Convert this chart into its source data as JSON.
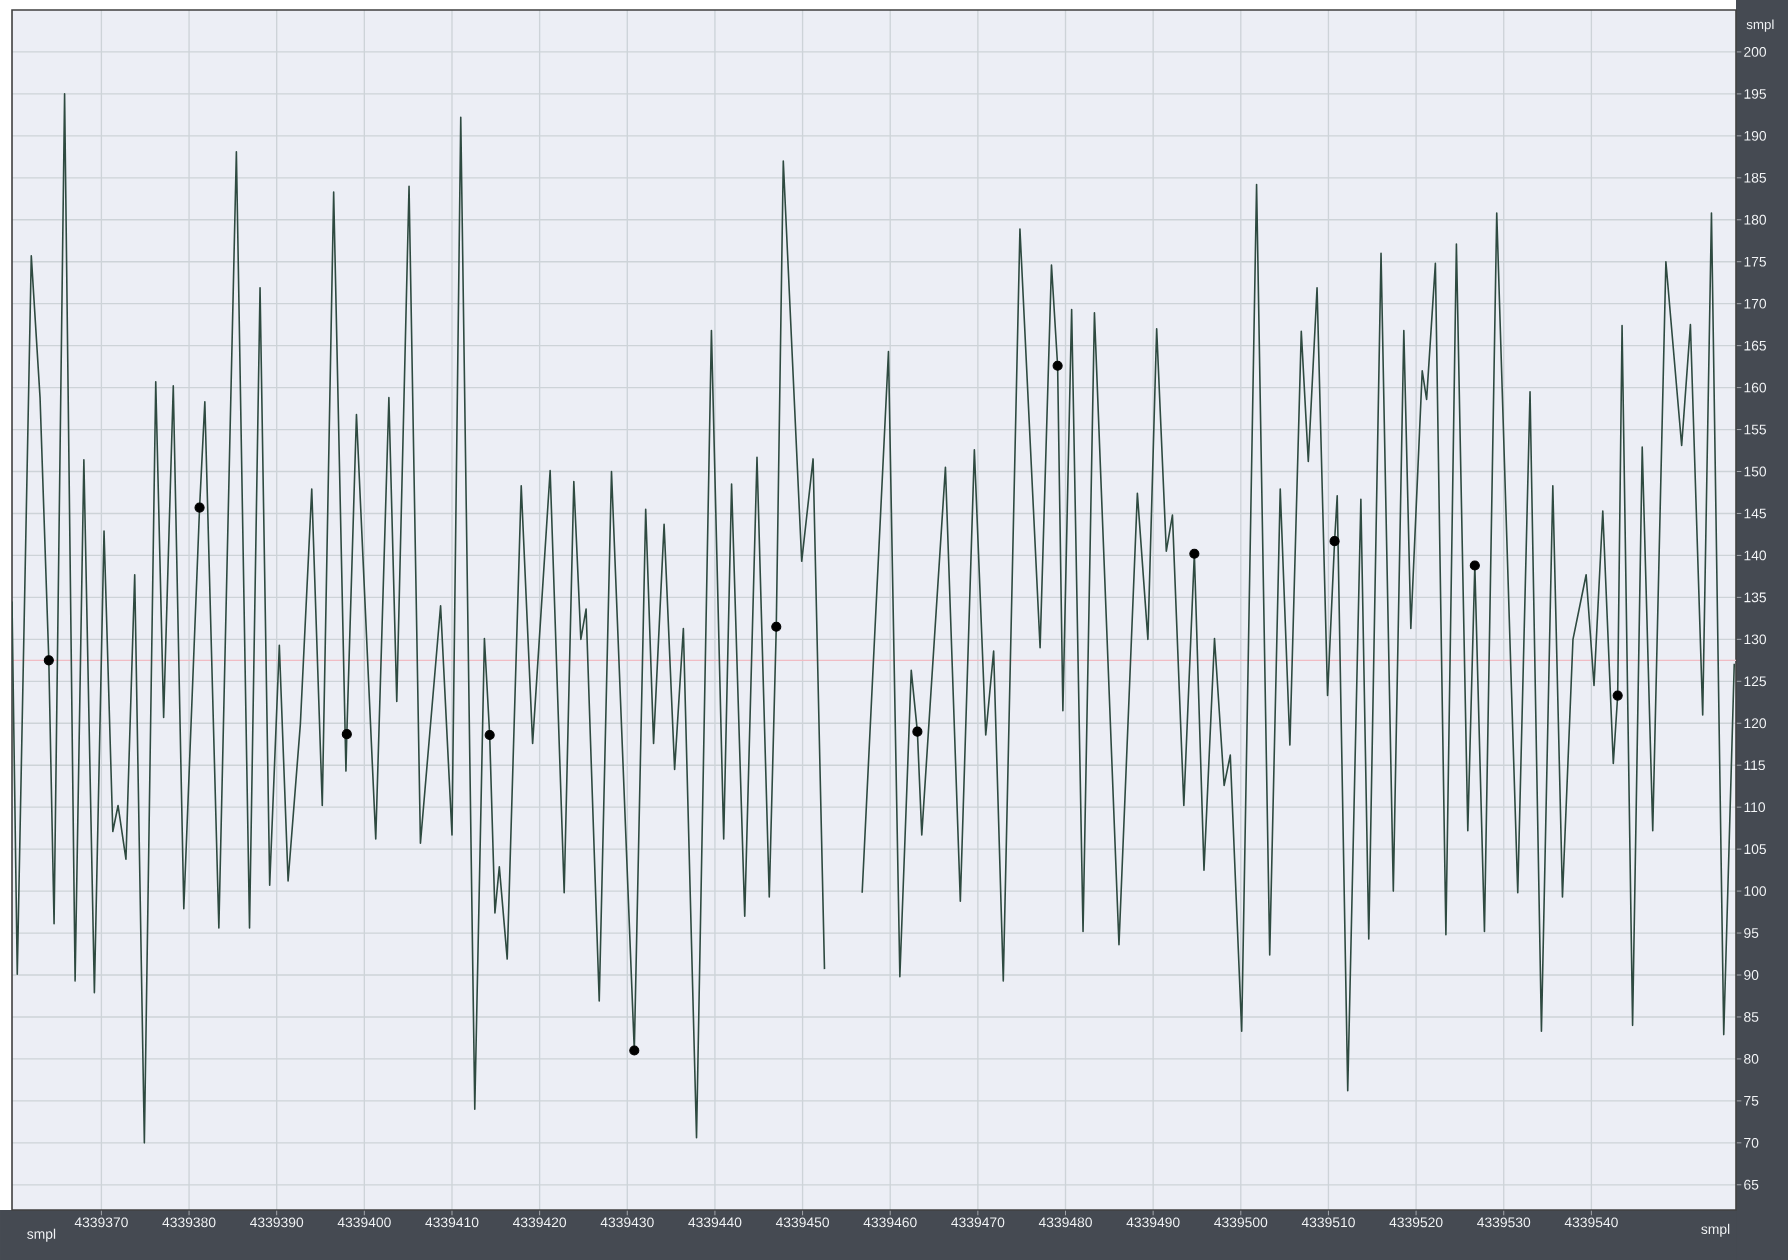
{
  "chart_data": {
    "type": "line",
    "xlabel": "smpl",
    "ylabel": "smpl",
    "annotations": [
      "smpl"
    ],
    "xlim": [
      4339359.8,
      4339556.5
    ],
    "ylim": [
      62,
      205
    ],
    "xticks": [
      4339370,
      4339380,
      4339390,
      4339400,
      4339410,
      4339420,
      4339430,
      4339440,
      4339450,
      4339460,
      4339470,
      4339480,
      4339490,
      4339500,
      4339510,
      4339520,
      4339530,
      4339540
    ],
    "yticks": [
      65,
      70,
      75,
      80,
      85,
      90,
      95,
      100,
      105,
      110,
      115,
      120,
      125,
      130,
      135,
      140,
      145,
      150,
      155,
      160,
      165,
      170,
      175,
      180,
      185,
      190,
      195,
      200
    ],
    "grid": true,
    "ref_lines": [
      {
        "axis": "y",
        "value": 127.5,
        "color": "#f0bcc4"
      }
    ],
    "series": [
      {
        "color": "#2e4a40",
        "x": [
          4339359.8,
          4339360.4,
          4339362.0,
          4339363.0,
          4339364.0,
          4339364.6,
          4339365.8,
          4339367.0,
          4339368.0,
          4339369.2,
          4339370.3,
          4339371.3,
          4339371.9,
          4339372.8,
          4339373.8,
          4339374.9,
          4339376.2,
          4339377.1,
          4339378.2,
          4339379.4,
          4339381.2,
          4339381.8,
          4339383.4,
          4339385.4,
          4339386.9,
          4339388.1,
          4339389.2,
          4339390.3,
          4339391.3,
          4339392.7,
          4339394.0,
          4339395.2,
          4339396.5,
          4339397.9,
          4339398.0,
          4339399.1,
          4339401.3,
          4339402.8,
          4339403.7,
          4339405.1,
          4339406.4,
          4339408.7,
          4339410.0,
          4339411.0,
          4339412.6,
          4339413.7,
          4339414.3,
          4339414.9,
          4339415.4,
          4339416.3,
          4339417.9,
          4339419.2,
          4339421.2,
          4339422.8,
          4339423.9,
          4339424.7,
          4339425.3,
          4339426.8,
          4339428.2,
          4339430.8,
          4339432.1,
          4339433.0,
          4339434.2,
          4339435.4,
          4339436.4,
          4339437.9,
          4339439.6,
          4339441.0,
          4339441.9,
          4339443.4,
          4339444.8,
          4339446.2,
          4339447.0,
          4339447.8,
          4339449.9,
          4339451.2,
          4339452.5,
          4339453.4,
          4339454.6,
          4339456.8,
          4339459.8,
          4339461.1,
          4339462.4,
          4339463.1,
          4339463.6,
          4339466.3,
          4339468.0,
          4339469.6,
          4339470.9,
          4339471.8,
          4339472.9,
          4339474.8,
          4339477.1,
          4339478.4,
          4339479.1,
          4339479.7,
          4339480.7,
          4339482.0,
          4339483.3,
          4339486.1,
          4339488.2,
          4339489.4,
          4339490.4,
          4339491.5,
          4339492.2,
          4339493.5,
          4339494.7,
          4339495.8,
          4339497.0,
          4339498.1,
          4339498.8,
          4339500.1,
          4339501.8,
          4339503.3,
          4339504.5,
          4339505.6,
          4339506.9,
          4339507.7,
          4339508.7,
          4339509.9,
          4339510.7,
          4339511.0,
          4339512.2,
          4339513.7,
          4339514.6,
          4339516.0,
          4339517.4,
          4339518.6,
          4339519.4,
          4339520.7,
          4339521.2,
          4339522.2,
          4339523.4,
          4339524.6,
          4339525.9,
          4339526.7,
          4339527.8,
          4339529.2,
          4339531.6,
          4339533.0,
          4339534.3,
          4339535.6,
          4339536.7,
          4339537.9,
          4339539.4,
          4339540.3,
          4339541.3,
          4339542.5,
          4339543.0,
          4339543.5,
          4339544.7,
          4339545.8,
          4339547.0,
          4339548.5,
          4339550.3,
          4339551.3,
          4339552.7,
          4339553.7,
          4339555.1,
          4339556.3
        ],
        "values": [
          134.5,
          90.1,
          175.7,
          158.8,
          127.5,
          96.1,
          195.0,
          89.3,
          151.4,
          87.9,
          142.9,
          107.1,
          110.2,
          103.8,
          137.7,
          70.0,
          160.7,
          120.7,
          160.2,
          97.9,
          145.7,
          158.3,
          95.6,
          188.1,
          95.6,
          171.9,
          100.7,
          129.3,
          101.2,
          119.9,
          147.9,
          110.2,
          183.3,
          114.3,
          118.7,
          156.8,
          106.2,
          158.8,
          122.6,
          184.0,
          105.7,
          134.0,
          106.7,
          192.2,
          74.0,
          130.1,
          118.6,
          97.4,
          102.9,
          91.9,
          148.3,
          117.6,
          150.1,
          99.8,
          148.8,
          130.0,
          133.6,
          86.9,
          150.0,
          81.0,
          145.5,
          117.6,
          143.7,
          114.5,
          131.3,
          70.6,
          166.8,
          106.2,
          148.5,
          97.0,
          151.7,
          99.3,
          131.5,
          187.0,
          139.3,
          151.5,
          90.7,
          null,
          null,
          99.8,
          164.3,
          89.8,
          126.3,
          119.0,
          106.7,
          150.5,
          98.8,
          152.6,
          118.6,
          128.6,
          89.3,
          178.9,
          129.0,
          174.6,
          162.6,
          121.5,
          169.3,
          95.2,
          168.9,
          93.6,
          147.4,
          130.0,
          167.0,
          140.5,
          144.8,
          110.2,
          140.2,
          102.5,
          130.1,
          112.6,
          116.2,
          83.3,
          184.2,
          92.4,
          147.9,
          117.4,
          166.7,
          151.2,
          171.9,
          123.3,
          141.7,
          147.1,
          76.2,
          146.7,
          94.3,
          176.0,
          100.0,
          166.8,
          131.3,
          162.0,
          158.6,
          174.8,
          94.8,
          177.1,
          107.2,
          138.8,
          95.2,
          180.8,
          99.8,
          159.5,
          83.3,
          148.3,
          99.3,
          130.0,
          137.7,
          124.5,
          145.3,
          115.2,
          123.3,
          167.4,
          84.0,
          152.9,
          107.2,
          175.0,
          153.1,
          167.5,
          121.0,
          180.8,
          82.9,
          127.1
        ]
      },
      {
        "type": "scatter",
        "color": "#000000",
        "marker": "circle",
        "x": [
          4339364.0,
          4339381.2,
          4339398.0,
          4339414.3,
          4339430.8,
          4339447.0,
          4339463.1,
          4339479.1,
          4339494.7,
          4339510.7,
          4339526.7,
          4339543.0
        ],
        "values": [
          127.5,
          145.7,
          118.7,
          118.6,
          81.0,
          131.5,
          119.0,
          162.6,
          140.2,
          141.7,
          138.8,
          123.3
        ]
      }
    ]
  }
}
